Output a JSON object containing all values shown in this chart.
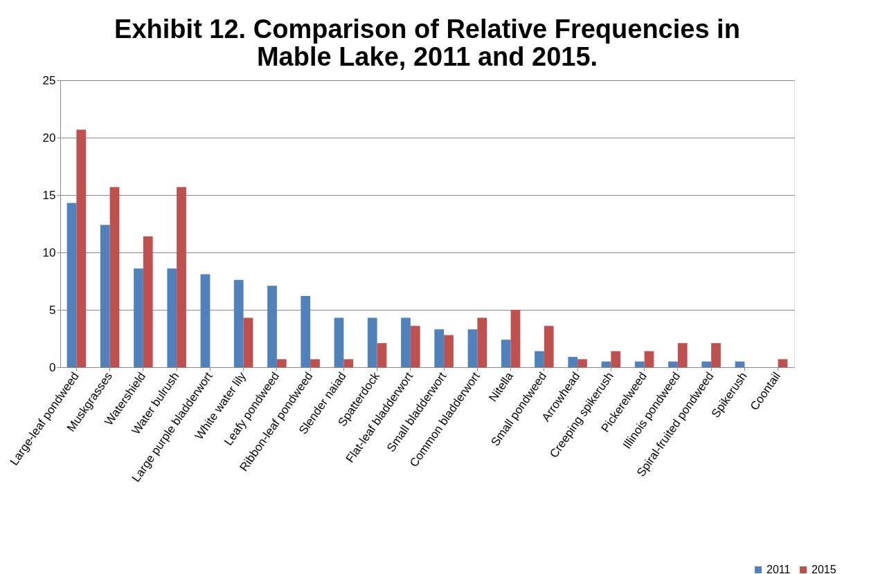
{
  "chart_data": {
    "type": "bar",
    "title": [
      "Exhibit 12. Comparison of Relative Frequencies in",
      "Mable Lake, 2011 and 2015."
    ],
    "categories": [
      "Large-leaf pondweed",
      "Muskgrasses",
      "Watershield",
      "Water bulrush",
      "Large purple bladderwort",
      "White water lily",
      "Leafy pondweed",
      "Ribbon-leaf pondweed",
      "Slender naiad",
      "Spatterdock",
      "Flat-leaf bladderwort",
      "Small bladderwort",
      "Common bladderwort",
      "Nitella",
      "Small pondweed",
      "Arrowhead",
      "Creeping spikerush",
      "Pickerelweed",
      "Illinois pondweed",
      "Spiral-fruited pondweed",
      "Spikerush",
      "Coontail"
    ],
    "series": [
      {
        "name": "2011",
        "color": "#4f81bd",
        "values": [
          14.3,
          12.4,
          8.6,
          8.6,
          8.1,
          7.6,
          7.1,
          6.2,
          4.3,
          4.3,
          4.3,
          3.3,
          3.3,
          2.4,
          1.4,
          0.9,
          0.5,
          0.5,
          0.5,
          0.5,
          0.5,
          0
        ]
      },
      {
        "name": "2015",
        "color": "#c0504d",
        "values": [
          20.7,
          15.7,
          11.4,
          15.7,
          0,
          4.3,
          0.7,
          0.7,
          0.7,
          2.1,
          3.6,
          2.8,
          4.3,
          5.0,
          3.6,
          0.7,
          1.4,
          1.4,
          2.1,
          2.1,
          0,
          0.7
        ]
      }
    ],
    "ylim": [
      0,
      25
    ],
    "yticks": [
      0,
      5,
      10,
      15,
      20,
      25
    ],
    "grid": "y",
    "legend": "bottom right"
  }
}
